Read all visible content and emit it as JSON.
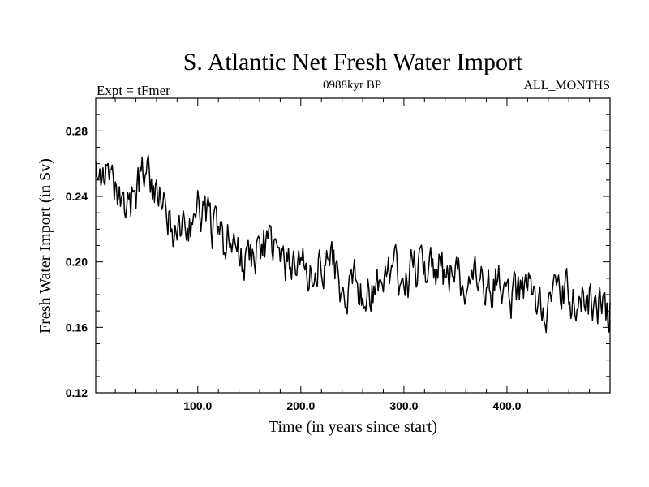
{
  "chart_data": {
    "type": "line",
    "title": "S. Atlantic Net Fresh Water Import",
    "subtitle_left": "Expt = tFmer",
    "subtitle_center": "0988kyr BP",
    "subtitle_right": "ALL_MONTHS",
    "xlabel": "Time (in years since start)",
    "ylabel": "Fresh Water Import (in Sv)",
    "xlim": [
      1,
      500
    ],
    "ylim": [
      0.12,
      0.3
    ],
    "xticks": [
      100,
      200,
      300,
      400
    ],
    "xtick_labels": [
      "100.0",
      "200.0",
      "300.0",
      "400.0"
    ],
    "yticks": [
      0.12,
      0.16,
      0.2,
      0.24,
      0.28
    ],
    "ytick_labels": [
      "0.12",
      "0.16",
      "0.20",
      "0.24",
      "0.28"
    ],
    "series": [
      {
        "name": "Net Fresh Water Import",
        "color": "#000000",
        "x": [
          1,
          10,
          20,
          30,
          40,
          50,
          60,
          70,
          80,
          90,
          100,
          110,
          120,
          130,
          140,
          150,
          160,
          170,
          180,
          190,
          200,
          210,
          220,
          230,
          240,
          250,
          260,
          270,
          280,
          290,
          300,
          310,
          320,
          330,
          340,
          350,
          360,
          370,
          380,
          390,
          400,
          410,
          420,
          430,
          440,
          450,
          460,
          470,
          480,
          490,
          500
        ],
        "values": [
          0.268,
          0.252,
          0.238,
          0.228,
          0.244,
          0.26,
          0.24,
          0.226,
          0.218,
          0.22,
          0.232,
          0.23,
          0.214,
          0.212,
          0.205,
          0.2,
          0.212,
          0.21,
          0.198,
          0.2,
          0.196,
          0.192,
          0.198,
          0.206,
          0.176,
          0.19,
          0.182,
          0.184,
          0.188,
          0.194,
          0.188,
          0.196,
          0.198,
          0.2,
          0.19,
          0.194,
          0.184,
          0.186,
          0.182,
          0.186,
          0.18,
          0.178,
          0.184,
          0.176,
          0.174,
          0.18,
          0.178,
          0.174,
          0.178,
          0.172,
          0.17
        ],
        "noise_amplitude": 0.012
      }
    ]
  }
}
